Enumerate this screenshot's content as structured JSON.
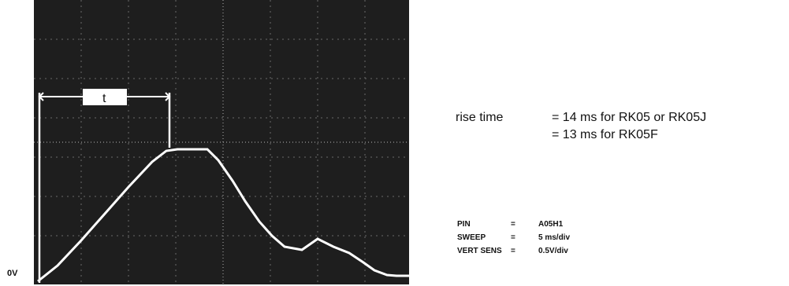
{
  "scope": {
    "zero_label": "0V",
    "t_marker": "t",
    "trace_color": "#ffffff",
    "screen_color": "#1e1e1e"
  },
  "rise_time": {
    "label": "rise time",
    "lines": [
      "= 14 ms for RK05 or RK05J",
      "= 13 ms for RK05F"
    ]
  },
  "params": [
    {
      "key": "PIN",
      "eq": "=",
      "value": "A05H1"
    },
    {
      "key": "SWEEP",
      "eq": "=",
      "value": "5 ms/div"
    },
    {
      "key": "VERT SENS",
      "eq": "=",
      "value": "0.5V/div"
    }
  ]
}
